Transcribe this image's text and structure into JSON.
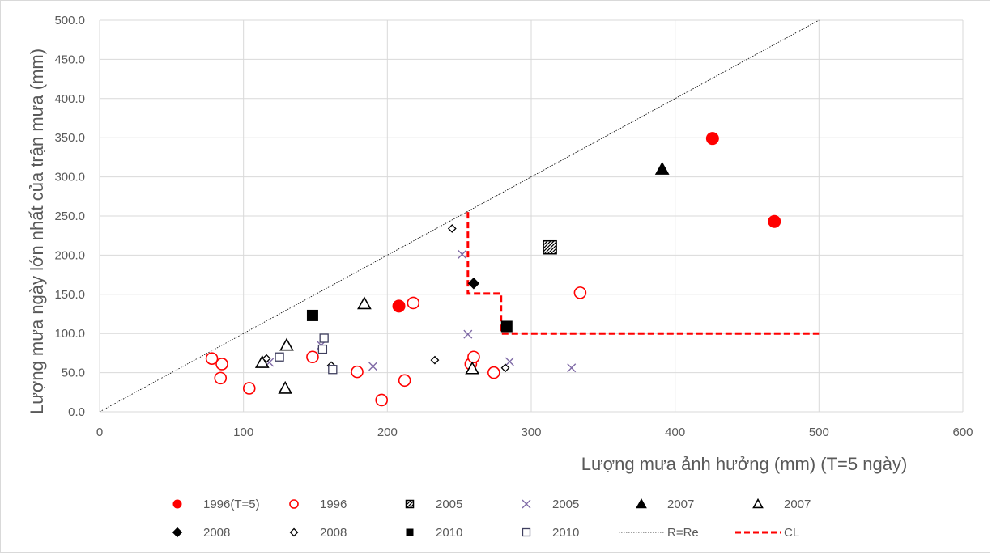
{
  "chart_data": {
    "type": "scatter",
    "title": "",
    "xlabel": "Lượng mưa ảnh hưởng (mm) (T=5 ngày)",
    "ylabel": "Lượng mưa ngày lớn nhất của trận mưa (mm)",
    "xlim": [
      0,
      600
    ],
    "ylim": [
      0,
      500
    ],
    "x_ticks": [
      0,
      100,
      200,
      300,
      400,
      500,
      600
    ],
    "y_ticks": [
      0,
      50,
      100,
      150,
      200,
      250,
      300,
      350,
      400,
      450,
      500
    ],
    "x_tick_labels": [
      "0",
      "100",
      "200",
      "300",
      "400",
      "500",
      "600"
    ],
    "y_tick_labels": [
      "0.0",
      "50.0",
      "100.0",
      "150.0",
      "200.0",
      "250.0",
      "300.0",
      "350.0",
      "400.0",
      "450.0",
      "500.0"
    ],
    "grid": "vertical and horizontal major gridlines",
    "legend_position": "bottom",
    "series": [
      {
        "name": "1996(T=5)",
        "marker": "circle-filled",
        "color": "#ff0000",
        "points": [
          [
            208,
            135
          ],
          [
            426,
            349
          ],
          [
            469,
            243
          ]
        ]
      },
      {
        "name": "1996",
        "marker": "circle-open",
        "color": "#ff0000",
        "points": [
          [
            78,
            68
          ],
          [
            85,
            61
          ],
          [
            84,
            43
          ],
          [
            104,
            30
          ],
          [
            148,
            70
          ],
          [
            179,
            51
          ],
          [
            196,
            15
          ],
          [
            212,
            40
          ],
          [
            218,
            139
          ],
          [
            258,
            61
          ],
          [
            260,
            70
          ],
          [
            274,
            50
          ],
          [
            334,
            152
          ]
        ]
      },
      {
        "name": "2005",
        "marker": "square-hatched",
        "color": "#000000",
        "points": [
          [
            313,
            210
          ]
        ]
      },
      {
        "name": "2005",
        "marker": "x",
        "color": "#7f6aa6",
        "points": [
          [
            118,
            63
          ],
          [
            154,
            85
          ],
          [
            190,
            58
          ],
          [
            252,
            201
          ],
          [
            256,
            99
          ],
          [
            285,
            64
          ],
          [
            328,
            56
          ]
        ]
      },
      {
        "name": "2007",
        "marker": "triangle-filled",
        "color": "#000000",
        "points": [
          [
            391,
            310
          ]
        ]
      },
      {
        "name": "2007",
        "marker": "triangle-open",
        "color": "#000000",
        "points": [
          [
            113,
            63
          ],
          [
            130,
            85
          ],
          [
            129,
            30
          ],
          [
            184,
            138
          ],
          [
            259,
            55
          ]
        ]
      },
      {
        "name": "2008",
        "marker": "diamond-filled",
        "color": "#000000",
        "points": [
          [
            260,
            164
          ]
        ]
      },
      {
        "name": "2008",
        "marker": "diamond-open",
        "color": "#000000",
        "points": [
          [
            116,
            68
          ],
          [
            161,
            59
          ],
          [
            233,
            66
          ],
          [
            245,
            234
          ],
          [
            282,
            56
          ]
        ]
      },
      {
        "name": "2010",
        "marker": "square-filled",
        "color": "#000000",
        "points": [
          [
            148,
            123
          ],
          [
            283,
            109
          ]
        ]
      },
      {
        "name": "2010",
        "marker": "square-open",
        "color": "#3f3f5f",
        "points": [
          [
            125,
            70
          ],
          [
            155,
            80
          ],
          [
            156,
            94
          ],
          [
            162,
            54
          ]
        ]
      },
      {
        "name": "R=Re",
        "marker": "line-dotted",
        "color": "#000000",
        "points": [
          [
            0,
            0
          ],
          [
            500,
            500
          ]
        ]
      },
      {
        "name": "CL",
        "marker": "line-dashed",
        "color": "#ff0000",
        "points": [
          [
            256,
            255
          ],
          [
            256,
            151
          ],
          [
            279,
            151
          ],
          [
            279,
            100
          ],
          [
            500,
            100
          ]
        ]
      }
    ]
  }
}
